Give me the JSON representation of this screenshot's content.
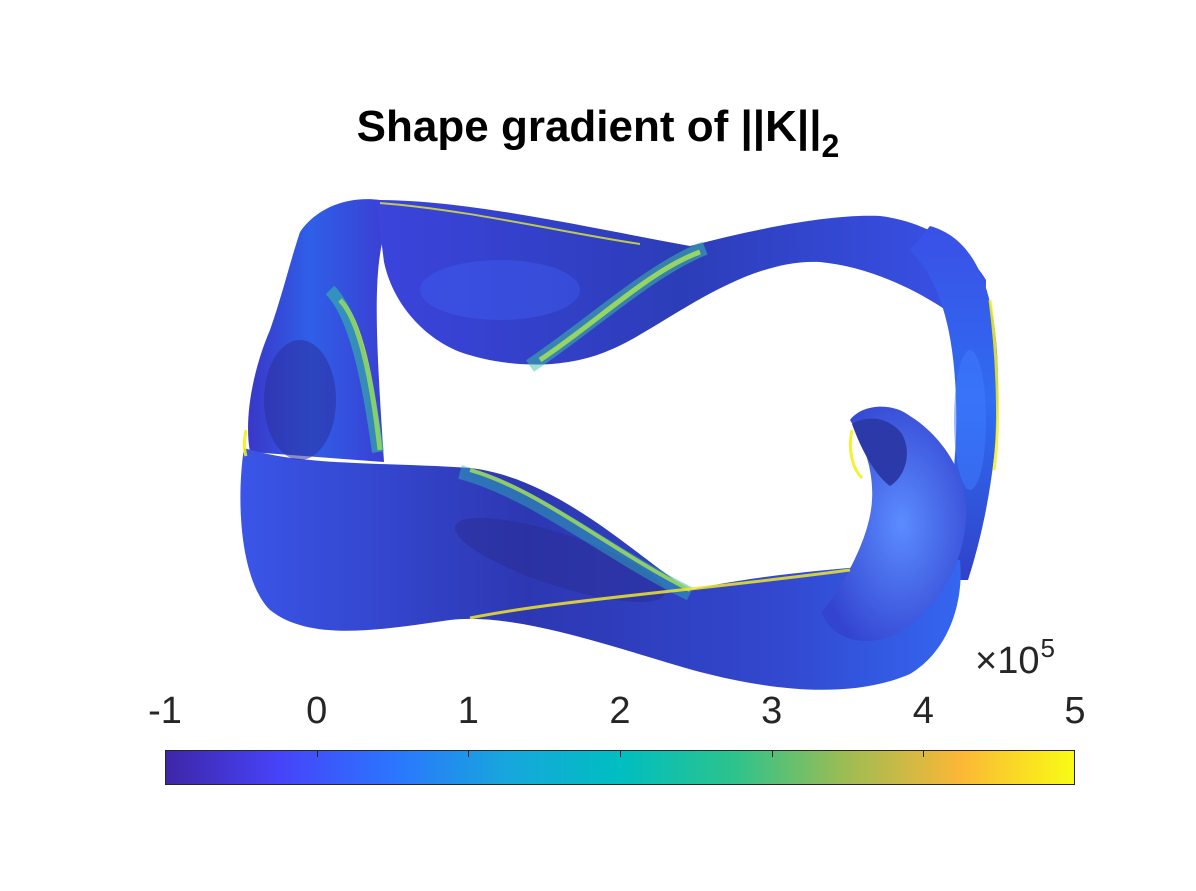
{
  "title": {
    "main": "Shape gradient of ||K||",
    "subscript": "2"
  },
  "colorbar": {
    "colormap": "parula",
    "min": -1,
    "max": 5,
    "exponent_prefix": "×10",
    "exponent_power": "5",
    "ticks": [
      "-1",
      "0",
      "1",
      "2",
      "3",
      "4",
      "5"
    ],
    "colors": [
      "#3e26a8",
      "#4743f8",
      "#2c75ff",
      "#17a6dd",
      "#00bec1",
      "#2cc38d",
      "#9ebc53",
      "#fbb737",
      "#f9fb15"
    ]
  },
  "surface": {
    "description_colors": {
      "dominant": "#3c3ed6",
      "secondary": "#2f6cf2",
      "highlight_mid": "#3fc3a6",
      "highlight_high": "#f2f019"
    }
  }
}
